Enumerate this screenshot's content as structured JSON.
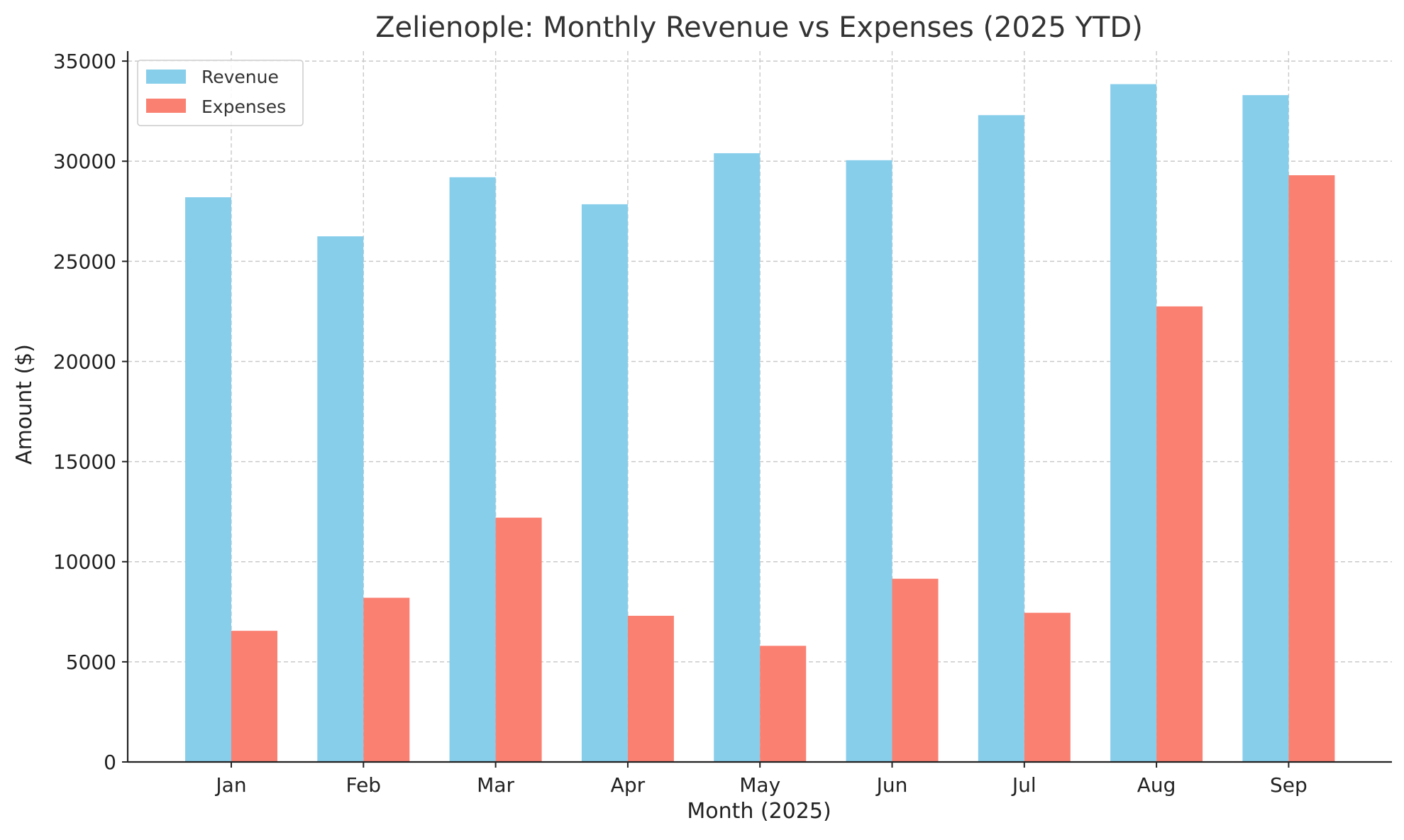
{
  "chart_data": {
    "type": "bar",
    "title": "Zelienople: Monthly Revenue vs Expenses (2025 YTD)",
    "xlabel": "Month (2025)",
    "ylabel": "Amount ($)",
    "categories": [
      "Jan",
      "Feb",
      "Mar",
      "Apr",
      "May",
      "Jun",
      "Jul",
      "Aug",
      "Sep"
    ],
    "series": [
      {
        "name": "Revenue",
        "color": "#87CEEB",
        "values": [
          28200,
          26250,
          29200,
          27850,
          30400,
          30050,
          32300,
          33850,
          33300
        ]
      },
      {
        "name": "Expenses",
        "color": "#FA8072",
        "values": [
          6550,
          8200,
          12200,
          7300,
          5800,
          9150,
          7450,
          22750,
          29300
        ]
      }
    ],
    "ylim": [
      0,
      35500
    ],
    "yticks": [
      0,
      5000,
      10000,
      15000,
      20000,
      25000,
      30000,
      35000
    ],
    "grid": true,
    "legend_position": "top-left"
  }
}
